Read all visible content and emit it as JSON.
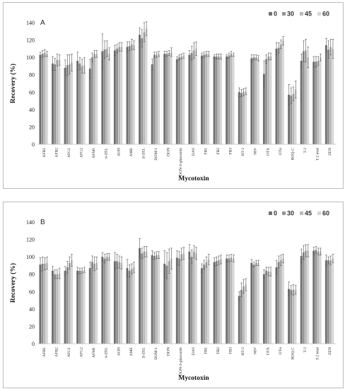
{
  "chart_data": [
    {
      "type": "bar",
      "panel_label": "A",
      "ylabel": "Recovery (%)",
      "xlabel": "Mycotoxin",
      "ylim": [
        0,
        140
      ],
      "yticks": [
        0,
        20,
        40,
        60,
        80,
        100,
        120,
        140
      ],
      "grid": false,
      "legend_position": "top-right",
      "categories": [
        "AFB1",
        "AFB2",
        "AFG1",
        "AFG2",
        "AFM1",
        "α-ZEL",
        "AOH",
        "AME",
        "β-ZEL",
        "DOM-1",
        "DON",
        "DON-3-glucoside",
        "DAS",
        "FB1",
        "FB2",
        "FB3",
        "HT-2",
        "NIV",
        "OTA",
        "OTα",
        "ROQ-C",
        "T-2",
        "T-2 triol",
        "ZEN"
      ],
      "series": [
        {
          "name": "0",
          "color": "#707070",
          "values": [
            103,
            93,
            88,
            96,
            87,
            107,
            108,
            112,
            126,
            92,
            104,
            98,
            103,
            102,
            101,
            101,
            60,
            99,
            81,
            110,
            57,
            96,
            95,
            114
          ],
          "errors": [
            3,
            8,
            9,
            10,
            11,
            20,
            6,
            6,
            8,
            6,
            3,
            3,
            5,
            3,
            2,
            2,
            5,
            4,
            15,
            7,
            12,
            8,
            6,
            8
          ]
        },
        {
          "name": "30",
          "color": "#959595",
          "values": [
            104,
            92,
            91,
            93,
            100,
            109,
            110,
            113,
            122,
            103,
            104,
            100,
            105,
            103,
            101,
            102,
            59,
            100,
            98,
            111,
            56,
            107,
            95,
            109
          ],
          "errors": [
            4,
            7,
            12,
            7,
            5,
            10,
            5,
            5,
            10,
            3,
            3,
            3,
            8,
            3,
            3,
            3,
            4,
            3,
            5,
            6,
            9,
            12,
            6,
            10
          ]
        },
        {
          "name": "45",
          "color": "#b9b9b9",
          "values": [
            105,
            97,
            92,
            90,
            104,
            110,
            112,
            115,
            129,
            103,
            105,
            101,
            108,
            104,
            101,
            104,
            60,
            100,
            101,
            115,
            58,
            108,
            96,
            112
          ],
          "errors": [
            4,
            7,
            11,
            8,
            4,
            9,
            5,
            6,
            11,
            3,
            3,
            3,
            9,
            3,
            3,
            3,
            4,
            3,
            4,
            5,
            8,
            13,
            5,
            9
          ]
        },
        {
          "name": "60",
          "color": "#d6d6d6",
          "values": [
            104,
            97,
            94,
            91,
            104,
            104,
            112,
            114,
            133,
            104,
            106,
            102,
            110,
            104,
            101,
            103,
            61,
            99,
            101,
            119,
            63,
            100,
            100,
            110
          ],
          "errors": [
            3,
            6,
            10,
            9,
            4,
            7,
            5,
            5,
            8,
            3,
            5,
            3,
            8,
            3,
            3,
            2,
            4,
            3,
            4,
            5,
            10,
            12,
            4,
            11
          ]
        }
      ]
    },
    {
      "type": "bar",
      "panel_label": "B",
      "ylabel": "Recovery (%)",
      "xlabel": "Mycotoxin",
      "ylim": [
        0,
        140
      ],
      "yticks": [
        0,
        20,
        40,
        60,
        80,
        100,
        120,
        140
      ],
      "grid": false,
      "legend_position": "top-right",
      "categories": [
        "AFB1",
        "AFB2",
        "AFG1",
        "AFG2",
        "AFM1",
        "α-ZEL",
        "AOH",
        "AME",
        "β-ZEL",
        "DOM-1",
        "DON",
        "DON-3-glucoside",
        "DAS",
        "FB1",
        "FB2",
        "FB3",
        "HT-2",
        "NIV",
        "OTA",
        "OTα",
        "ROQ-C",
        "T-2",
        "T-2 triol",
        "ZEN"
      ],
      "series": [
        {
          "name": "0",
          "color": "#707070",
          "values": [
            91,
            84,
            84,
            84,
            87,
            100,
            95,
            87,
            110,
            102,
            92,
            99,
            106,
            87,
            94,
            98,
            55,
            93,
            80,
            88,
            63,
            101,
            107,
            96
          ],
          "errors": [
            8,
            5,
            5,
            4,
            7,
            5,
            10,
            10,
            11,
            5,
            15,
            8,
            8,
            5,
            5,
            4,
            5,
            4,
            5,
            8,
            8,
            8,
            4,
            6
          ]
        },
        {
          "name": "30",
          "color": "#959595",
          "values": [
            92,
            80,
            88,
            84,
            94,
            98,
            95,
            84,
            104,
            101,
            90,
            98,
            100,
            91,
            95,
            98,
            62,
            91,
            84,
            94,
            62,
            105,
            108,
            96
          ],
          "errors": [
            8,
            5,
            7,
            3,
            7,
            5,
            8,
            7,
            6,
            4,
            15,
            8,
            8,
            5,
            5,
            4,
            8,
            3,
            4,
            7,
            5,
            8,
            4,
            4
          ]
        },
        {
          "name": "45",
          "color": "#b9b9b9",
          "values": [
            92,
            80,
            93,
            84,
            92,
            100,
            94,
            86,
            106,
            102,
            95,
            103,
            106,
            94,
            96,
            99,
            66,
            93,
            83,
            96,
            62,
            107,
            106,
            96
          ],
          "errors": [
            7,
            5,
            7,
            3,
            8,
            4,
            7,
            6,
            6,
            4,
            14,
            7,
            7,
            6,
            5,
            4,
            8,
            3,
            5,
            6,
            6,
            7,
            4,
            5
          ]
        },
        {
          "name": "60",
          "color": "#d6d6d6",
          "values": [
            93,
            81,
            96,
            85,
            93,
            100,
            93,
            88,
            106,
            102,
            98,
            104,
            104,
            97,
            97,
            98,
            68,
            93,
            83,
            98,
            62,
            107,
            106,
            98
          ],
          "errors": [
            7,
            6,
            7,
            3,
            7,
            4,
            7,
            6,
            6,
            4,
            12,
            7,
            7,
            6,
            5,
            4,
            7,
            3,
            5,
            5,
            5,
            7,
            4,
            5
          ]
        }
      ]
    }
  ]
}
